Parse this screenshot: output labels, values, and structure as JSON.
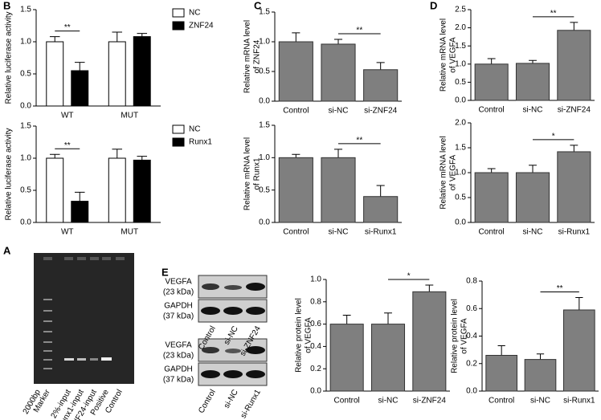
{
  "panel_labels": [
    "B",
    "C",
    "D",
    "A",
    "E"
  ],
  "chart_data": [
    {
      "type": "bar",
      "ylabel": "Relative luciferase activity",
      "categories": [
        "WT",
        "MUT"
      ],
      "series": [
        {
          "name": "NC",
          "color": "#ffffff",
          "values": [
            1.0,
            1.0
          ],
          "errors": [
            0.08,
            0.15
          ]
        },
        {
          "name": "ZNF24",
          "color": "#000000",
          "values": [
            0.55,
            1.08
          ],
          "errors": [
            0.13,
            0.05
          ]
        }
      ],
      "ylim": [
        0,
        1.5
      ],
      "yticks": [
        {
          "value": 0,
          "label": "0.0"
        },
        0.5,
        {
          "value": 1,
          "label": "1.0"
        },
        1.5
      ],
      "annotation": "**"
    },
    {
      "type": "bar",
      "ylabel": "Relative luciferase activity",
      "categories": [
        "WT",
        "MUT"
      ],
      "series": [
        {
          "name": "NC",
          "color": "#ffffff",
          "values": [
            1.0,
            1.0
          ],
          "errors": [
            0.06,
            0.14
          ]
        },
        {
          "name": "Runx1",
          "color": "#000000",
          "values": [
            0.33,
            0.97
          ],
          "errors": [
            0.14,
            0.06
          ]
        }
      ],
      "ylim": [
        0,
        1.5
      ],
      "yticks": [
        {
          "value": 0,
          "label": "0.0"
        },
        0.5,
        {
          "value": 1,
          "label": "1.0"
        },
        1.5
      ],
      "annotation": "**"
    },
    {
      "type": "bar",
      "ylabel": [
        "Relative mRNA level",
        "of ZNF24"
      ],
      "categories": [
        "Control",
        "si-NC",
        "si-ZNF24"
      ],
      "values": [
        1.0,
        0.96,
        0.53
      ],
      "errors": [
        0.15,
        0.08,
        0.12
      ],
      "color": "#7f7f7f",
      "ylim": [
        0,
        1.5
      ],
      "yticks": [
        {
          "value": 0,
          "label": "0.0"
        },
        0.5,
        {
          "value": 1,
          "label": "1.0"
        },
        1.5
      ],
      "annotation": "**"
    },
    {
      "type": "bar",
      "ylabel": [
        "Relative mRNA level",
        "of Runx1"
      ],
      "categories": [
        "Control",
        "si-NC",
        "si-Runx1"
      ],
      "values": [
        1.0,
        1.0,
        0.4
      ],
      "errors": [
        0.05,
        0.13,
        0.17
      ],
      "color": "#7f7f7f",
      "ylim": [
        0,
        1.5
      ],
      "yticks": [
        {
          "value": 0,
          "label": "0.0"
        },
        0.5,
        {
          "value": 1,
          "label": "1.0"
        },
        1.5
      ],
      "annotation": "**"
    },
    {
      "type": "bar",
      "ylabel": [
        "Relative mRNA level",
        "of VEGFA"
      ],
      "categories": [
        "Control",
        "si-NC",
        "si-ZNF24"
      ],
      "values": [
        1.0,
        1.02,
        1.93
      ],
      "errors": [
        0.15,
        0.08,
        0.22
      ],
      "color": "#7f7f7f",
      "ylim": [
        0,
        2.5
      ],
      "yticks": [
        {
          "value": 0,
          "label": "0.0"
        },
        0.5,
        {
          "value": 1,
          "label": "1.0"
        },
        1.5,
        {
          "value": 2,
          "label": "2.0"
        },
        2.5
      ],
      "annotation": "**"
    },
    {
      "type": "bar",
      "ylabel": [
        "Relative mRNA level",
        "of VEGFA"
      ],
      "categories": [
        "Control",
        "si-NC",
        "si-Runx1"
      ],
      "values": [
        1.0,
        1.0,
        1.42
      ],
      "errors": [
        0.08,
        0.15,
        0.13
      ],
      "color": "#7f7f7f",
      "ylim": [
        0,
        2.0
      ],
      "yticks": [
        {
          "value": 0,
          "label": "0.0"
        },
        0.5,
        {
          "value": 1,
          "label": "1.0"
        },
        1.5,
        {
          "value": 2,
          "label": "2.0"
        }
      ],
      "annotation": "*"
    },
    {
      "type": "bar",
      "ylabel": [
        "Relative protein level",
        "of VEGFA"
      ],
      "categories": [
        "Control",
        "si-NC",
        "si-ZNF24"
      ],
      "values": [
        0.6,
        0.6,
        0.89
      ],
      "errors": [
        0.08,
        0.1,
        0.06
      ],
      "color": "#7f7f7f",
      "ylim": [
        0,
        1.0
      ],
      "yticks": [
        {
          "value": 0,
          "label": "0.0"
        },
        0.2,
        0.4,
        0.6,
        0.8,
        {
          "value": 1,
          "label": "1.0"
        }
      ],
      "annotation": "*"
    },
    {
      "type": "bar",
      "ylabel": [
        "Relative protein level",
        "of VEGFA"
      ],
      "categories": [
        "Control",
        "si-NC",
        "si-Runx1"
      ],
      "values": [
        0.26,
        0.23,
        0.59
      ],
      "errors": [
        0.07,
        0.04,
        0.09
      ],
      "color": "#7f7f7f",
      "ylim": [
        0,
        0.8
      ],
      "yticks": [
        {
          "value": 0,
          "label": "0.0"
        },
        0.2,
        0.4,
        0.6,
        0.8
      ],
      "annotation": "**"
    }
  ],
  "gel": {
    "marker_size": "2000bp",
    "lanes": [
      "Marker",
      "2%-input",
      "Runx1-input",
      "ZNF24-input",
      "Positive",
      "Control"
    ]
  },
  "blots": [
    {
      "bands": [
        {
          "name": "VEGFA",
          "size": "(23 kDa)"
        },
        {
          "name": "GAPDH",
          "size": "(37 kDa)"
        }
      ],
      "lanes": [
        "Control",
        "si-NC",
        "si-ZNF24"
      ]
    },
    {
      "bands": [
        {
          "name": "VEGFA",
          "size": "(23 kDa)"
        },
        {
          "name": "GAPDH",
          "size": "(37 kDa)"
        }
      ],
      "lanes": [
        "Control",
        "si-NC",
        "si-Runx1"
      ]
    }
  ]
}
